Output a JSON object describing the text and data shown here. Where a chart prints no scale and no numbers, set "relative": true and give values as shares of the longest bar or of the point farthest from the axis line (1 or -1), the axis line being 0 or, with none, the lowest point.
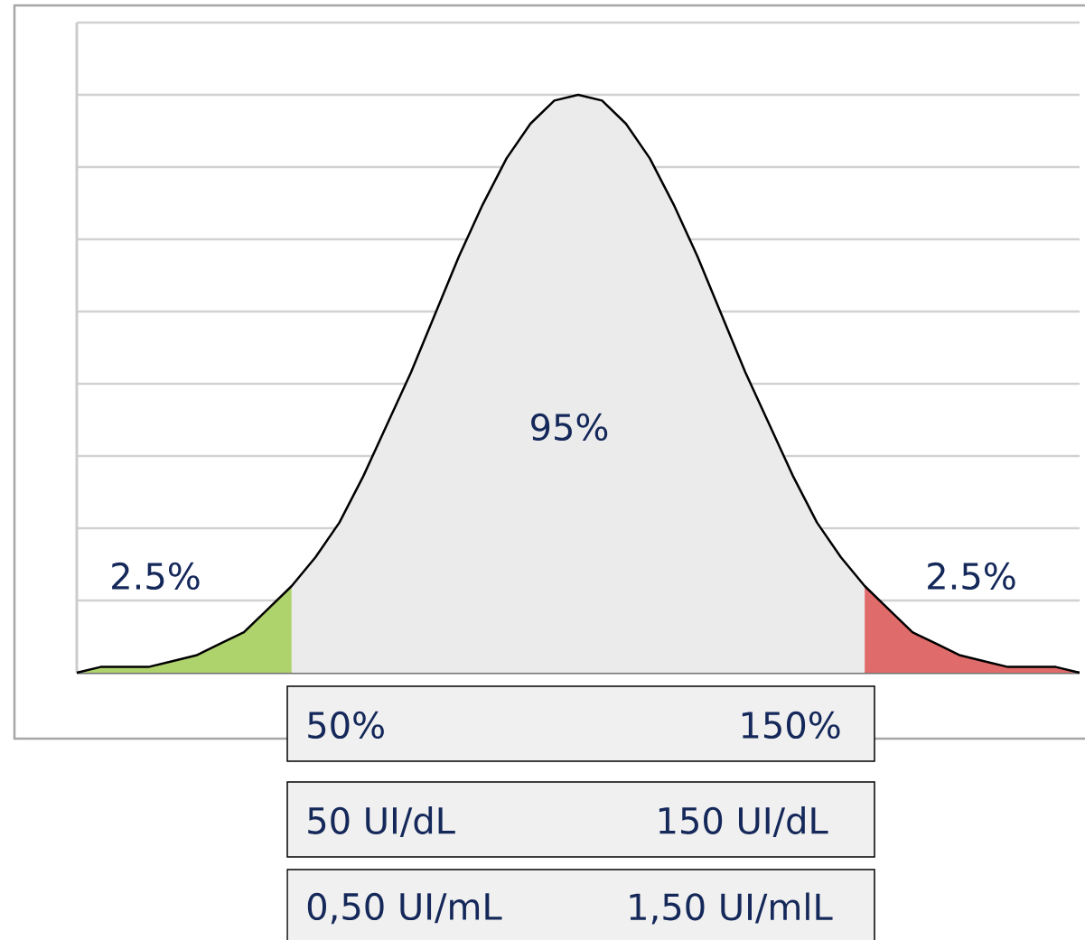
{
  "chart_data": {
    "type": "area",
    "relative": true,
    "grid": "y",
    "categories": [
      null,
      null,
      null,
      null,
      null,
      null,
      null,
      null,
      null,
      null,
      null,
      null,
      null,
      null,
      null,
      null,
      null,
      null,
      null,
      null,
      null,
      null,
      null,
      null,
      null,
      null,
      null,
      null,
      null,
      null,
      null,
      null,
      null,
      null,
      null,
      null,
      null,
      null,
      null,
      null,
      null,
      null,
      null
    ],
    "series": [
      {
        "color": "#aed36c",
        "values": [
          0.0,
          0.01,
          0.01,
          0.01,
          0.02,
          0.03,
          0.05,
          0.07,
          0.11,
          0.15,
          null,
          null,
          null,
          null,
          null,
          null,
          null,
          null,
          null,
          null,
          null,
          null,
          null,
          null,
          null,
          null,
          null,
          null,
          null,
          null,
          null,
          null,
          null,
          null,
          null,
          null,
          null,
          null,
          null,
          null,
          null,
          null,
          null
        ]
      },
      {
        "color": "#ebebeb",
        "values": [
          null,
          null,
          null,
          null,
          null,
          null,
          null,
          null,
          null,
          0.15,
          0.2,
          0.26,
          0.34,
          0.43,
          0.52,
          0.62,
          0.72,
          0.81,
          0.89,
          0.95,
          0.99,
          1,
          0.99,
          0.95,
          0.89,
          0.81,
          0.72,
          0.62,
          0.52,
          0.43,
          0.34,
          0.26,
          0.2,
          0.15,
          null,
          null,
          null,
          null,
          null,
          null,
          null,
          null,
          null
        ]
      },
      {
        "color": "#e06b6b",
        "values": [
          null,
          null,
          null,
          null,
          null,
          null,
          null,
          null,
          null,
          null,
          null,
          null,
          null,
          null,
          null,
          null,
          null,
          null,
          null,
          null,
          null,
          null,
          null,
          null,
          null,
          null,
          null,
          null,
          null,
          null,
          null,
          null,
          null,
          0.15,
          0.11,
          0.07,
          0.05,
          0.03,
          0.02,
          0.01,
          0.01,
          0.01,
          0.0
        ]
      },
      {
        "type": "line",
        "color": "#000000",
        "values": [
          0.0,
          0.01,
          0.01,
          0.01,
          0.02,
          0.03,
          0.05,
          0.07,
          0.11,
          0.15,
          0.2,
          0.26,
          0.34,
          0.43,
          0.52,
          0.62,
          0.72,
          0.81,
          0.89,
          0.95,
          0.99,
          1,
          0.99,
          0.95,
          0.89,
          0.81,
          0.72,
          0.62,
          0.52,
          0.43,
          0.34,
          0.26,
          0.2,
          0.15,
          0.11,
          0.07,
          0.05,
          0.03,
          0.02,
          0.01,
          0.01,
          0.01,
          0.0
        ]
      }
    ],
    "annotations": [
      "95%",
      "2.5%",
      "2.5%",
      "50%",
      "150%",
      "50 UI/dL",
      "150 UI/dL",
      "0,50 UI/mL",
      "1,50 UI/mlL"
    ]
  }
}
